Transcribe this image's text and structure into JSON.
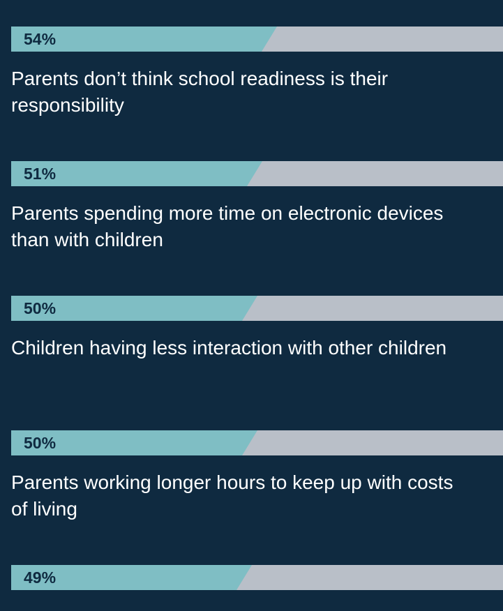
{
  "chart_data": {
    "type": "bar",
    "orientation": "horizontal",
    "categories": [
      "Parents don’t think school readiness is their responsibility",
      "Parents spending more time on electronic devices than with children",
      "Children having less interaction with other children",
      "Parents working longer hours to keep up with costs of living",
      ""
    ],
    "values": [
      54,
      51,
      50,
      50,
      49
    ],
    "value_labels": [
      "54%",
      "51%",
      "50%",
      "50%",
      "49%"
    ],
    "unit": "%",
    "xlim": [
      0,
      100
    ],
    "colors": {
      "background": "#0f2a40",
      "bar_fill": "#7fbec4",
      "bar_track": "#b9bfc8",
      "value_text": "#0f2a40",
      "label_text": "#ffffff"
    }
  }
}
